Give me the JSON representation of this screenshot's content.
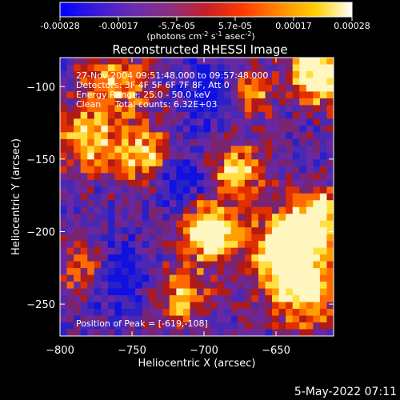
{
  "colorbar": {
    "ticks": [
      "-0.00028",
      "-0.00017",
      "-5.7e-05",
      "5.7e-05",
      "0.00017",
      "0.00028"
    ],
    "unit_main": "(photons cm",
    "unit_exp1": "-2",
    "unit_mid": " s",
    "unit_exp2": "-1",
    "unit_end": " asec",
    "unit_exp3": "-2",
    "unit_close": ")",
    "stops": [
      "#0000ff",
      "#3b1bd6",
      "#6a2cb0",
      "#8a2e7f",
      "#c4202c",
      "#ff3a00",
      "#ff8a00",
      "#ffd000",
      "#ffffff"
    ]
  },
  "plot": {
    "title": "Reconstructed RHESSI Image",
    "info_lines": [
      "27-Nov-2004 09:51:48.000 to 09:57:48.000",
      "Detectors: 3F 4F 5F 6F 7F 8F, Att 0",
      "Energy Range: 25.0 - 50.0 keV",
      "Clean     Total counts: 6.32E+03"
    ],
    "peak_label": "Position of Peak = [-619,-108]"
  },
  "axes": {
    "xlabel": "Heliocentric X (arcsec)",
    "ylabel": "Heliocentric Y (arcsec)",
    "xticks": [
      -800,
      -750,
      -700,
      -650
    ],
    "yticks": [
      -100,
      -150,
      -200,
      -250
    ],
    "xrange": [
      -800,
      -610
    ],
    "yrange": [
      -272,
      -80
    ]
  },
  "footer": {
    "date_stamp": "5-May-2022 07:11"
  }
}
